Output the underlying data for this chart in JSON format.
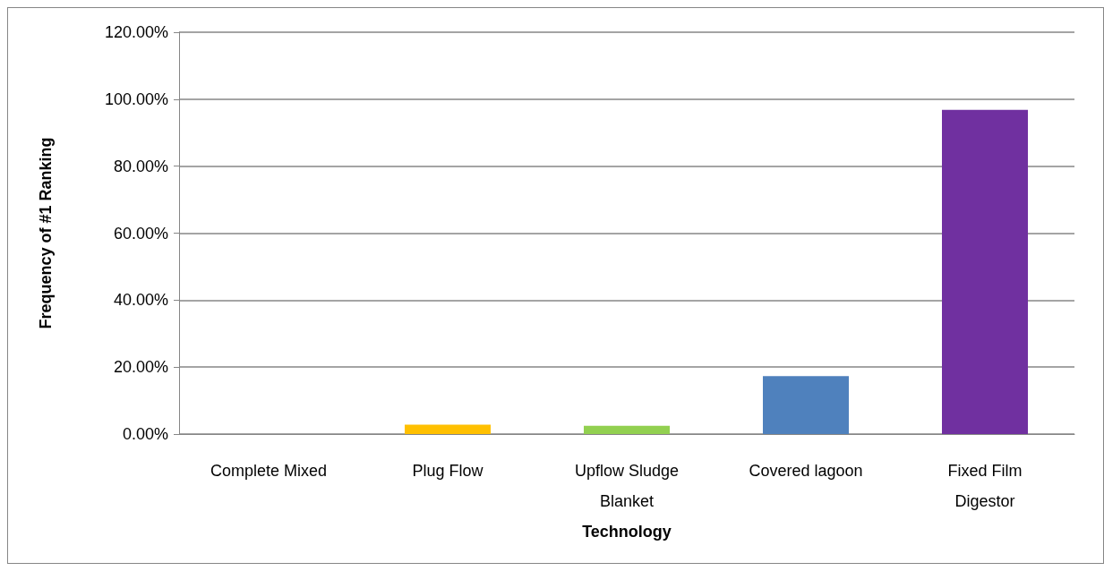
{
  "chart_data": {
    "type": "bar",
    "xlabel": "Technology",
    "ylabel": "Frequency of #1 Ranking",
    "categories": [
      "Complete Mixed",
      "Plug Flow",
      "Upflow Sludge\nBlanket",
      "Covered lagoon",
      "Fixed Film\nDigestor"
    ],
    "values": [
      0,
      2.8,
      2.5,
      17.3,
      96.8
    ],
    "colors": [
      "#4f81bd",
      "#ffc000",
      "#92d050",
      "#4f81bd",
      "#7030a0"
    ],
    "ylim": [
      0,
      120
    ],
    "yticks": [
      {
        "value": 0,
        "label": "0.00%"
      },
      {
        "value": 20,
        "label": "20.00%"
      },
      {
        "value": 40,
        "label": "40.00%"
      },
      {
        "value": 60,
        "label": "60.00%"
      },
      {
        "value": 80,
        "label": "80.00%"
      },
      {
        "value": 100,
        "label": "100.00%"
      },
      {
        "value": 120,
        "label": "120.00%"
      }
    ],
    "grid": "y"
  }
}
